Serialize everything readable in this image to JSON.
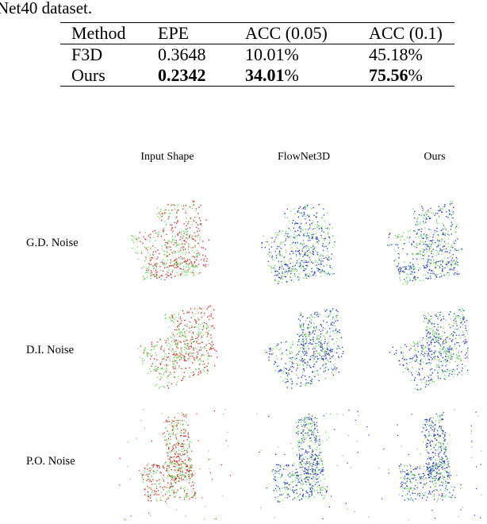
{
  "caption_tail": "Net40 dataset.",
  "table": {
    "columns": [
      "Method",
      "EPE",
      "ACC (0.05)",
      "ACC (0.1)"
    ],
    "rows": [
      {
        "method": "F3D",
        "epe": "0.3648",
        "acc005": {
          "num": "10.01",
          "unit": "%"
        },
        "acc01": {
          "num": "45.18",
          "unit": "%"
        },
        "bold": false
      },
      {
        "method": "Ours",
        "epe": "0.2342",
        "acc005": {
          "num": "34.01",
          "unit": "%"
        },
        "acc01": {
          "num": "75.56",
          "unit": "%"
        },
        "bold": true
      }
    ]
  },
  "figure": {
    "column_headers": [
      "Input Shape",
      "FlowNet3D",
      "Ours"
    ],
    "row_labels": [
      "G.D. Noise",
      "D.I. Noise",
      "P.O. Noise"
    ],
    "colors": {
      "source": "#e11a1a",
      "target": "#5fd94a",
      "predicted": "#1f2fd6"
    }
  }
}
